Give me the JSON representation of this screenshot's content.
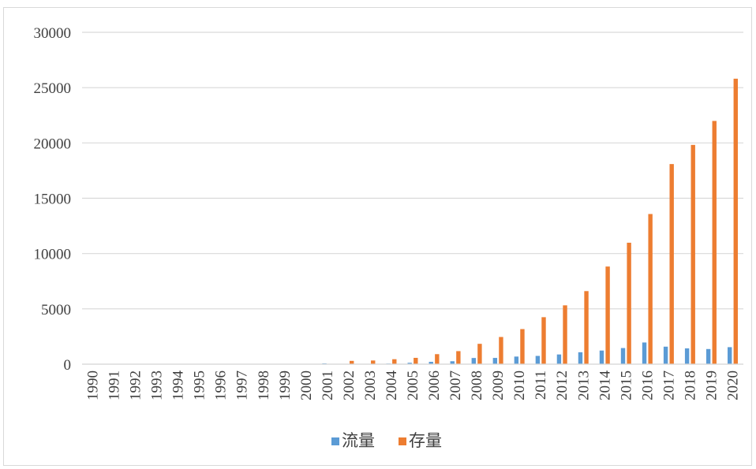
{
  "chart_data": {
    "type": "bar",
    "title": "",
    "xlabel": "",
    "ylabel": "",
    "categories": [
      "1990",
      "1991",
      "1992",
      "1993",
      "1994",
      "1995",
      "1996",
      "1997",
      "1998",
      "1999",
      "2000",
      "2001",
      "2002",
      "2003",
      "2004",
      "2005",
      "2006",
      "2007",
      "2008",
      "2009",
      "2010",
      "2011",
      "2012",
      "2013",
      "2014",
      "2015",
      "2016",
      "2017",
      "2018",
      "2019",
      "2020"
    ],
    "series": [
      {
        "name": "流量",
        "color": "#5b9bd5",
        "values": [
          0,
          0,
          0,
          0,
          0,
          0,
          0,
          0,
          0,
          0,
          0,
          70,
          27,
          29,
          55,
          123,
          212,
          265,
          559,
          565,
          688,
          747,
          878,
          1078,
          1231,
          1457,
          1961,
          1583,
          1430,
          1369,
          1537
        ]
      },
      {
        "name": "存量",
        "color": "#ed7d31",
        "values": [
          0,
          0,
          0,
          0,
          0,
          0,
          0,
          0,
          0,
          0,
          0,
          0,
          299,
          332,
          448,
          572,
          906,
          1179,
          1840,
          2458,
          3172,
          4248,
          5319,
          6605,
          8826,
          10979,
          13574,
          18090,
          19823,
          21989,
          25807
        ]
      }
    ],
    "ylim": [
      0,
      30000
    ],
    "yticks": [
      0,
      5000,
      10000,
      15000,
      20000,
      25000,
      30000
    ],
    "grid": true,
    "legend_position": "bottom"
  }
}
